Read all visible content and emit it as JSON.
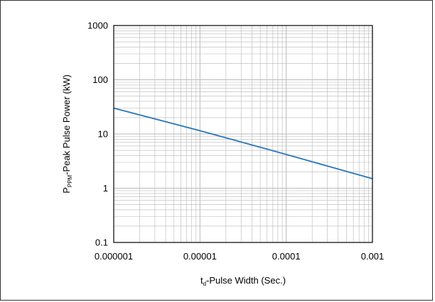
{
  "chart_data": {
    "type": "line",
    "title": "",
    "xlabel": {
      "main": "t",
      "sub": "d",
      "rest": "-Pulse Width (Sec.)"
    },
    "ylabel": {
      "main": "P",
      "sub": "PPM",
      "rest": "-Peak Pulse Power (kW)"
    },
    "x_scale": "log",
    "y_scale": "log",
    "xlim": [
      1e-06,
      0.001
    ],
    "ylim": [
      0.1,
      1000
    ],
    "x_ticks": [
      {
        "value": 1e-06,
        "label": "0.000001"
      },
      {
        "value": 1e-05,
        "label": "0.00001"
      },
      {
        "value": 0.0001,
        "label": "0.0001"
      },
      {
        "value": 0.001,
        "label": "0.001"
      }
    ],
    "y_ticks": [
      {
        "value": 0.1,
        "label": "0.1"
      },
      {
        "value": 1,
        "label": "1"
      },
      {
        "value": 10,
        "label": "10"
      },
      {
        "value": 100,
        "label": "100"
      },
      {
        "value": 1000,
        "label": "1000"
      }
    ],
    "grid": true,
    "legend": "none",
    "series": [
      {
        "color": "#2a76b8",
        "points": [
          {
            "x": 1e-06,
            "y": 30
          },
          {
            "x": 1e-05,
            "y": 11.5
          },
          {
            "x": 0.0001,
            "y": 4.2
          },
          {
            "x": 0.001,
            "y": 1.5
          }
        ]
      }
    ]
  }
}
